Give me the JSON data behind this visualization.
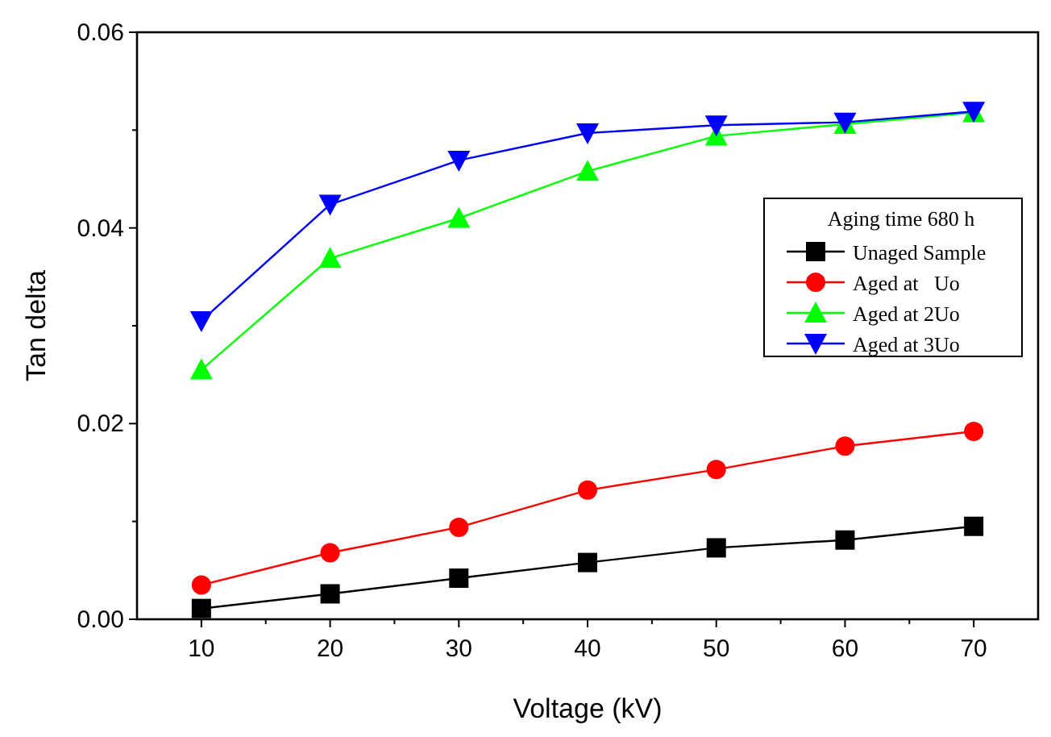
{
  "chart_data": {
    "type": "line",
    "xlabel": "Voltage (kV)",
    "ylabel": "Tan delta",
    "legend_title": "Aging time 680 h",
    "legend": "right",
    "grid": false,
    "line_style": "solid",
    "x": [
      10,
      20,
      30,
      40,
      50,
      60,
      70
    ],
    "xlim": [
      5,
      75
    ],
    "xticks": [
      10,
      {
        "value": 15,
        "label": null
      },
      20,
      {
        "value": 25,
        "label": null
      },
      30,
      {
        "value": 35,
        "label": null
      },
      40,
      {
        "value": 45,
        "label": null
      },
      50,
      {
        "value": 55,
        "label": null
      },
      60,
      {
        "value": 65,
        "label": null
      },
      70
    ],
    "ylim": [
      0,
      0.06
    ],
    "yticks": [
      {
        "value": 0,
        "label": "0.00"
      },
      {
        "value": 0.01,
        "label": null
      },
      {
        "value": 0.02,
        "label": "0.02"
      },
      {
        "value": 0.03,
        "label": null
      },
      {
        "value": 0.04,
        "label": "0.04"
      },
      {
        "value": 0.05,
        "label": null
      },
      {
        "value": 0.06,
        "label": "0.06"
      }
    ],
    "series": [
      {
        "name": "Unaged Sample",
        "color": "#000000",
        "marker": "square",
        "values": [
          0.0011,
          0.0026,
          0.0042,
          0.0058,
          0.0073,
          0.0081,
          0.0095
        ]
      },
      {
        "name": "Aged at   Uo",
        "color": "#ff0000",
        "marker": "circle",
        "values": [
          0.0035,
          0.0068,
          0.0094,
          0.0132,
          0.0153,
          0.0177,
          0.0192
        ]
      },
      {
        "name": "Aged at 2Uo",
        "color": "#00ff00",
        "marker": "triangle",
        "values": [
          0.0255,
          0.0369,
          0.041,
          0.0458,
          0.0494,
          0.0506,
          0.0518
        ]
      },
      {
        "name": "Aged at 3Uo",
        "color": "#0000ff",
        "marker": "triangle-down",
        "values": [
          0.0305,
          0.0424,
          0.0469,
          0.0497,
          0.0505,
          0.0508,
          0.0519
        ]
      }
    ]
  }
}
